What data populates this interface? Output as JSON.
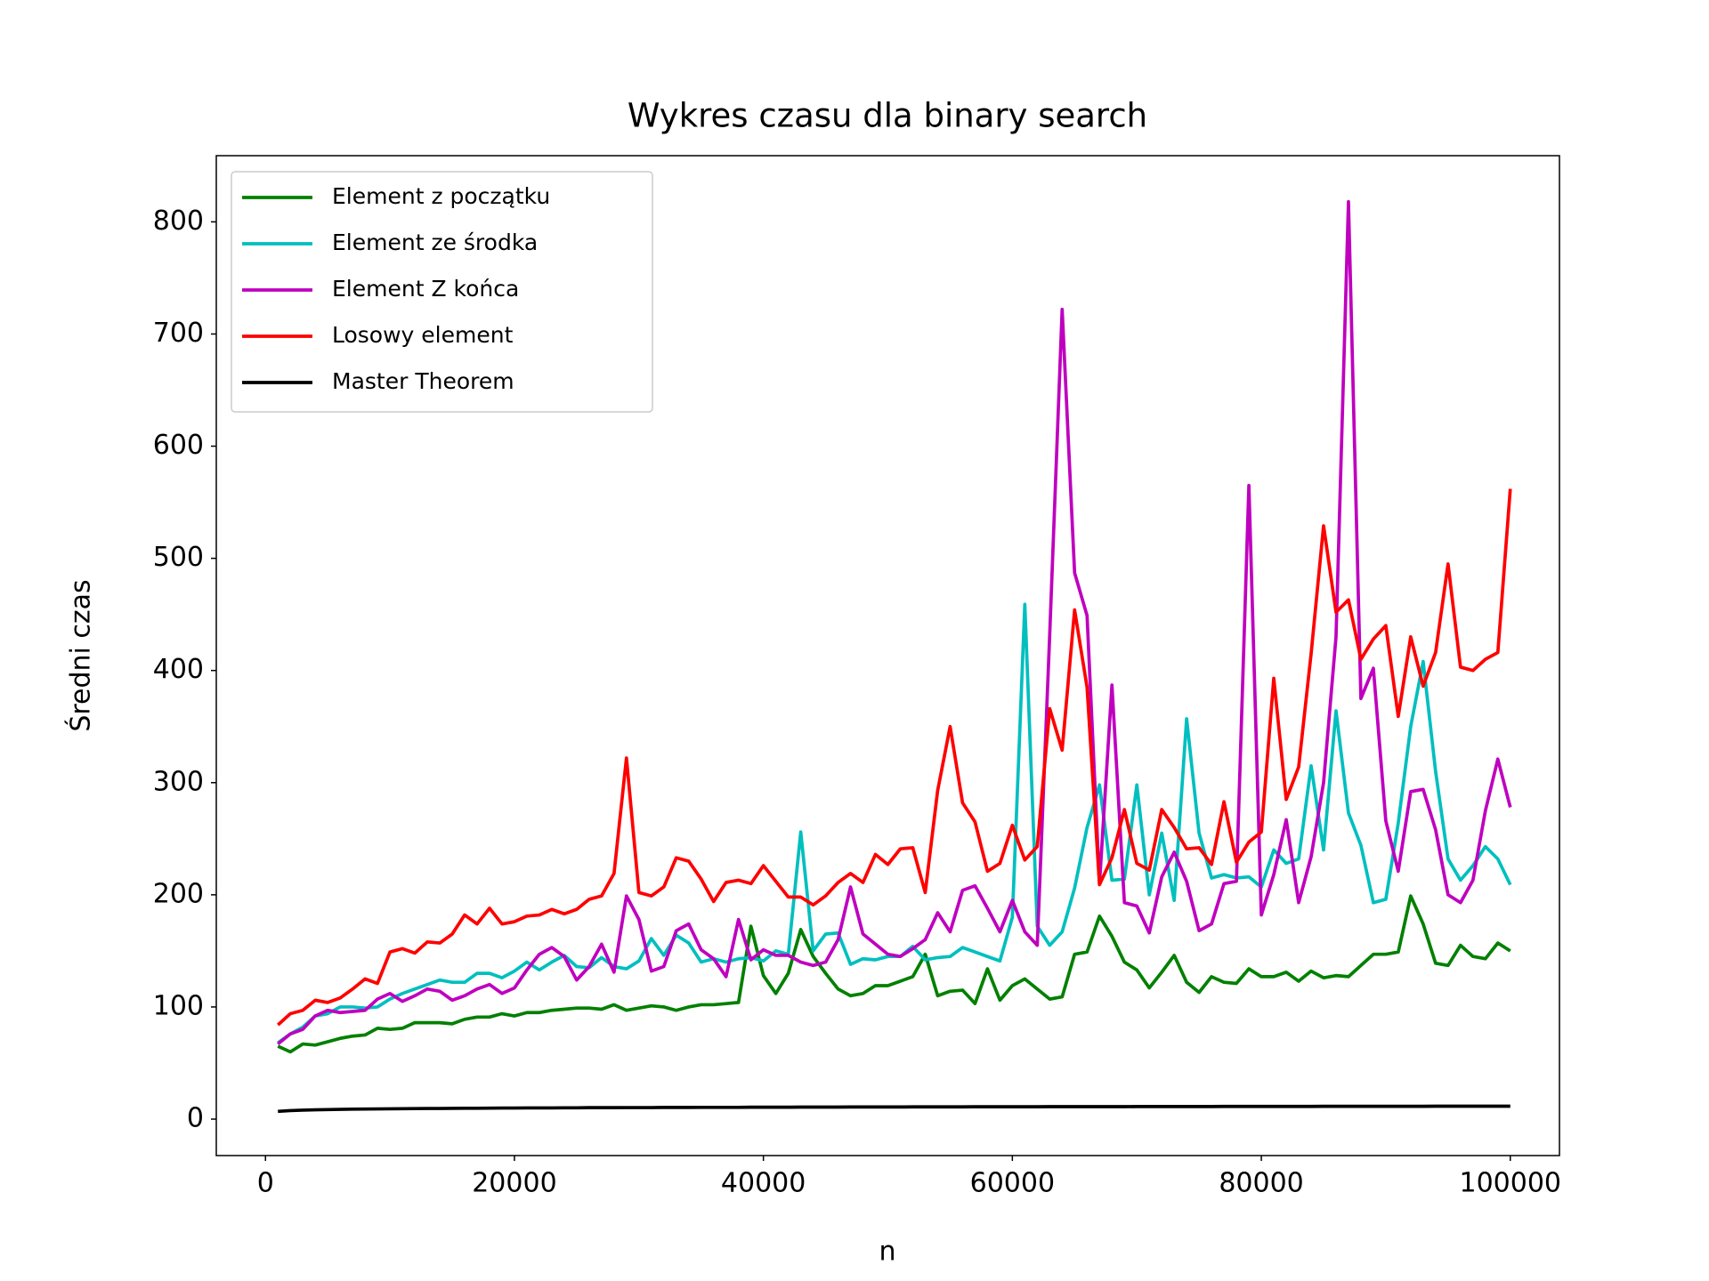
{
  "chart_data": {
    "type": "line",
    "title": "Wykres czasu dla binary search",
    "xlabel": "n",
    "ylabel": "Średni czas",
    "x": [
      1000,
      2000,
      3000,
      4000,
      5000,
      6000,
      7000,
      8000,
      9000,
      10000,
      11000,
      12000,
      13000,
      14000,
      15000,
      16000,
      17000,
      18000,
      19000,
      20000,
      21000,
      22000,
      23000,
      24000,
      25000,
      26000,
      27000,
      28000,
      29000,
      30000,
      31000,
      32000,
      33000,
      34000,
      35000,
      36000,
      37000,
      38000,
      39000,
      40000,
      41000,
      42000,
      43000,
      44000,
      45000,
      46000,
      47000,
      48000,
      49000,
      50000,
      51000,
      52000,
      53000,
      54000,
      55000,
      56000,
      57000,
      58000,
      59000,
      60000,
      61000,
      62000,
      63000,
      64000,
      65000,
      66000,
      67000,
      68000,
      69000,
      70000,
      71000,
      72000,
      73000,
      74000,
      75000,
      76000,
      77000,
      78000,
      79000,
      80000,
      81000,
      82000,
      83000,
      84000,
      85000,
      86000,
      87000,
      88000,
      89000,
      90000,
      91000,
      92000,
      93000,
      94000,
      95000,
      96000,
      97000,
      98000,
      99000,
      100000
    ],
    "series": [
      {
        "name": "Element z początku",
        "color": "#008000",
        "values": [
          65,
          60,
          67,
          66,
          69,
          72,
          74,
          75,
          81,
          80,
          81,
          86,
          86,
          86,
          85,
          89,
          91,
          91,
          94,
          92,
          95,
          95,
          97,
          98,
          99,
          99,
          98,
          102,
          97,
          99,
          101,
          100,
          97,
          100,
          102,
          102,
          103,
          104,
          172,
          128,
          112,
          130,
          169,
          145,
          130,
          116,
          110,
          112,
          119,
          119,
          123,
          127,
          147,
          110,
          114,
          115,
          103,
          134,
          106,
          119,
          125,
          116,
          107,
          109,
          147,
          149,
          181,
          163,
          140,
          133,
          117,
          131,
          146,
          122,
          113,
          127,
          122,
          121,
          134,
          127,
          127,
          131,
          123,
          132,
          126,
          128,
          127,
          137,
          147,
          147,
          149,
          199,
          174,
          139,
          137,
          155,
          145,
          143,
          157,
          150
        ]
      },
      {
        "name": "Element ze środka",
        "color": "#00bfbf",
        "values": [
          68,
          76,
          82,
          92,
          94,
          100,
          100,
          99,
          100,
          107,
          112,
          116,
          120,
          124,
          122,
          122,
          130,
          130,
          126,
          132,
          140,
          133,
          140,
          146,
          136,
          135,
          144,
          136,
          134,
          141,
          161,
          146,
          164,
          157,
          140,
          143,
          140,
          143,
          144,
          141,
          150,
          147,
          256,
          150,
          165,
          166,
          138,
          143,
          142,
          145,
          145,
          154,
          142,
          144,
          145,
          153,
          149,
          145,
          141,
          180,
          459,
          172,
          155,
          167,
          206,
          260,
          298,
          213,
          214,
          298,
          200,
          255,
          195,
          357,
          255,
          215,
          218,
          215,
          216,
          207,
          240,
          228,
          232,
          315,
          240,
          364,
          273,
          244,
          193,
          196,
          264,
          350,
          408,
          310,
          232,
          213,
          226,
          243,
          232,
          209
        ]
      },
      {
        "name": "Element Z końca",
        "color": "#bf00bf",
        "values": [
          67,
          76,
          80,
          92,
          97,
          95,
          96,
          97,
          107,
          112,
          105,
          110,
          116,
          114,
          106,
          110,
          116,
          120,
          112,
          117,
          133,
          147,
          153,
          145,
          124,
          136,
          156,
          131,
          199,
          178,
          132,
          136,
          168,
          174,
          151,
          143,
          127,
          178,
          142,
          151,
          146,
          146,
          140,
          137,
          140,
          160,
          207,
          165,
          156,
          147,
          145,
          152,
          160,
          184,
          167,
          204,
          208,
          188,
          167,
          195,
          167,
          155,
          432,
          722,
          487,
          449,
          210,
          387,
          193,
          190,
          166,
          216,
          238,
          212,
          168,
          174,
          210,
          212,
          565,
          182,
          218,
          267,
          193,
          234,
          300,
          430,
          818,
          375,
          402,
          266,
          221,
          292,
          294,
          258,
          200,
          193,
          213,
          275,
          321,
          278
        ]
      },
      {
        "name": "Losowy element",
        "color": "#ff0000",
        "values": [
          84,
          94,
          97,
          106,
          104,
          108,
          116,
          125,
          121,
          149,
          152,
          148,
          158,
          157,
          165,
          182,
          174,
          188,
          174,
          176,
          181,
          182,
          187,
          183,
          187,
          196,
          199,
          219,
          322,
          202,
          199,
          207,
          233,
          230,
          214,
          194,
          211,
          213,
          210,
          226,
          212,
          198,
          198,
          191,
          199,
          211,
          219,
          211,
          236,
          227,
          241,
          242,
          202,
          293,
          350,
          282,
          265,
          221,
          228,
          262,
          231,
          243,
          366,
          329,
          454,
          385,
          209,
          233,
          276,
          228,
          222,
          276,
          260,
          241,
          242,
          227,
          283,
          229,
          247,
          256,
          393,
          285,
          314,
          415,
          529,
          452,
          463,
          410,
          428,
          440,
          359,
          430,
          386,
          416,
          495,
          403,
          400,
          410,
          416,
          562
        ]
      },
      {
        "name": "Master Theorem",
        "color": "#000000",
        "values": [
          6.9,
          7.6,
          8.0,
          8.3,
          8.5,
          8.7,
          8.9,
          9.0,
          9.1,
          9.2,
          9.3,
          9.4,
          9.5,
          9.5,
          9.6,
          9.7,
          9.7,
          9.8,
          9.9,
          9.9,
          10.0,
          10.0,
          10.0,
          10.1,
          10.1,
          10.2,
          10.2,
          10.2,
          10.3,
          10.3,
          10.3,
          10.4,
          10.4,
          10.4,
          10.5,
          10.5,
          10.5,
          10.5,
          10.6,
          10.6,
          10.6,
          10.6,
          10.7,
          10.7,
          10.7,
          10.7,
          10.8,
          10.8,
          10.8,
          10.8,
          10.8,
          10.9,
          10.9,
          10.9,
          10.9,
          10.9,
          11.0,
          11.0,
          11.0,
          11.0,
          11.0,
          11.0,
          11.1,
          11.1,
          11.1,
          11.1,
          11.1,
          11.1,
          11.1,
          11.2,
          11.2,
          11.2,
          11.2,
          11.2,
          11.2,
          11.2,
          11.3,
          11.3,
          11.3,
          11.3,
          11.3,
          11.3,
          11.3,
          11.3,
          11.4,
          11.4,
          11.4,
          11.4,
          11.4,
          11.4,
          11.4,
          11.4,
          11.4,
          11.5,
          11.5,
          11.5,
          11.5,
          11.5,
          11.5,
          11.5
        ]
      }
    ],
    "xlim": [
      -3950,
      103950
    ],
    "xticks": [
      0,
      20000,
      40000,
      60000,
      80000,
      100000
    ],
    "ylim": [
      -32.5,
      859
    ],
    "yticks": [
      0,
      100,
      200,
      300,
      400,
      500,
      600,
      700,
      800
    ],
    "legend": "upper left",
    "grid": false
  }
}
